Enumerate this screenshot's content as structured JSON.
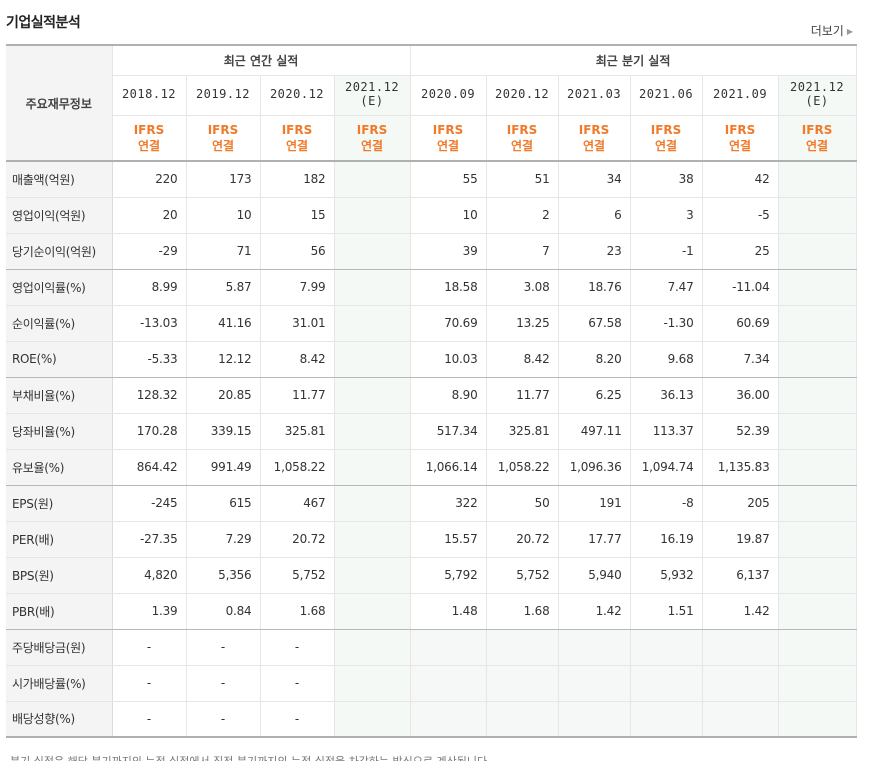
{
  "title": "기업실적분석",
  "more_label": "더보기",
  "table": {
    "row_header_label": "주요재무정보",
    "annual_group": "최근 연간 실적",
    "quarter_group": "최근 분기 실적",
    "annual_periods": [
      {
        "line1": "2018.12",
        "line2": ""
      },
      {
        "line1": "2019.12",
        "line2": ""
      },
      {
        "line1": "2020.12",
        "line2": ""
      },
      {
        "line1": "2021.12",
        "line2": "(E)"
      }
    ],
    "quarter_periods": [
      {
        "line1": "2020.09",
        "line2": ""
      },
      {
        "line1": "2020.12",
        "line2": ""
      },
      {
        "line1": "2021.03",
        "line2": ""
      },
      {
        "line1": "2021.06",
        "line2": ""
      },
      {
        "line1": "2021.09",
        "line2": ""
      },
      {
        "line1": "2021.12",
        "line2": "(E)"
      }
    ],
    "basis_line1": "IFRS",
    "basis_line2": "연결",
    "rows": [
      {
        "label": "매출액(억원)",
        "values": [
          "220",
          "173",
          "182",
          "",
          "55",
          "51",
          "34",
          "38",
          "42",
          ""
        ]
      },
      {
        "label": "영업이익(억원)",
        "values": [
          "20",
          "10",
          "15",
          "",
          "10",
          "2",
          "6",
          "3",
          "-5",
          ""
        ]
      },
      {
        "label": "당기순이익(억원)",
        "values": [
          "-29",
          "71",
          "56",
          "",
          "39",
          "7",
          "23",
          "-1",
          "25",
          ""
        ]
      },
      {
        "label": "영업이익률(%)",
        "values": [
          "8.99",
          "5.87",
          "7.99",
          "",
          "18.58",
          "3.08",
          "18.76",
          "7.47",
          "-11.04",
          ""
        ]
      },
      {
        "label": "순이익률(%)",
        "values": [
          "-13.03",
          "41.16",
          "31.01",
          "",
          "70.69",
          "13.25",
          "67.58",
          "-1.30",
          "60.69",
          ""
        ]
      },
      {
        "label": "ROE(%)",
        "values": [
          "-5.33",
          "12.12",
          "8.42",
          "",
          "10.03",
          "8.42",
          "8.20",
          "9.68",
          "7.34",
          ""
        ]
      },
      {
        "label": "부채비율(%)",
        "values": [
          "128.32",
          "20.85",
          "11.77",
          "",
          "8.90",
          "11.77",
          "6.25",
          "36.13",
          "36.00",
          ""
        ]
      },
      {
        "label": "당좌비율(%)",
        "values": [
          "170.28",
          "339.15",
          "325.81",
          "",
          "517.34",
          "325.81",
          "497.11",
          "113.37",
          "52.39",
          ""
        ]
      },
      {
        "label": "유보율(%)",
        "values": [
          "864.42",
          "991.49",
          "1,058.22",
          "",
          "1,066.14",
          "1,058.22",
          "1,096.36",
          "1,094.74",
          "1,135.83",
          ""
        ]
      },
      {
        "label": "EPS(원)",
        "values": [
          "-245",
          "615",
          "467",
          "",
          "322",
          "50",
          "191",
          "-8",
          "205",
          ""
        ]
      },
      {
        "label": "PER(배)",
        "values": [
          "-27.35",
          "7.29",
          "20.72",
          "",
          "15.57",
          "20.72",
          "17.77",
          "16.19",
          "19.87",
          ""
        ]
      },
      {
        "label": "BPS(원)",
        "values": [
          "4,820",
          "5,356",
          "5,752",
          "",
          "5,792",
          "5,752",
          "5,940",
          "5,932",
          "6,137",
          ""
        ]
      },
      {
        "label": "PBR(배)",
        "values": [
          "1.39",
          "0.84",
          "1.68",
          "",
          "1.48",
          "1.68",
          "1.42",
          "1.51",
          "1.42",
          ""
        ]
      },
      {
        "label": "주당배당금(원)",
        "values": [
          "-",
          "-",
          "-",
          "",
          "",
          "",
          "",
          "",
          "",
          ""
        ]
      },
      {
        "label": "시가배당률(%)",
        "values": [
          "-",
          "-",
          "-",
          "",
          "",
          "",
          "",
          "",
          "",
          ""
        ]
      },
      {
        "label": "배당성향(%)",
        "values": [
          "-",
          "-",
          "-",
          "",
          "",
          "",
          "",
          "",
          "",
          ""
        ]
      }
    ]
  },
  "footnote": "분기 실적은 해당 분기까지의 누적 실적에서 직전 분기까지의 누적 실적을 차감하는 방식으로 계산됩니다.",
  "colors": {
    "negative": "#e0231f",
    "basis": "#f07a2a",
    "estimate_bg": "#f4f9f6"
  }
}
